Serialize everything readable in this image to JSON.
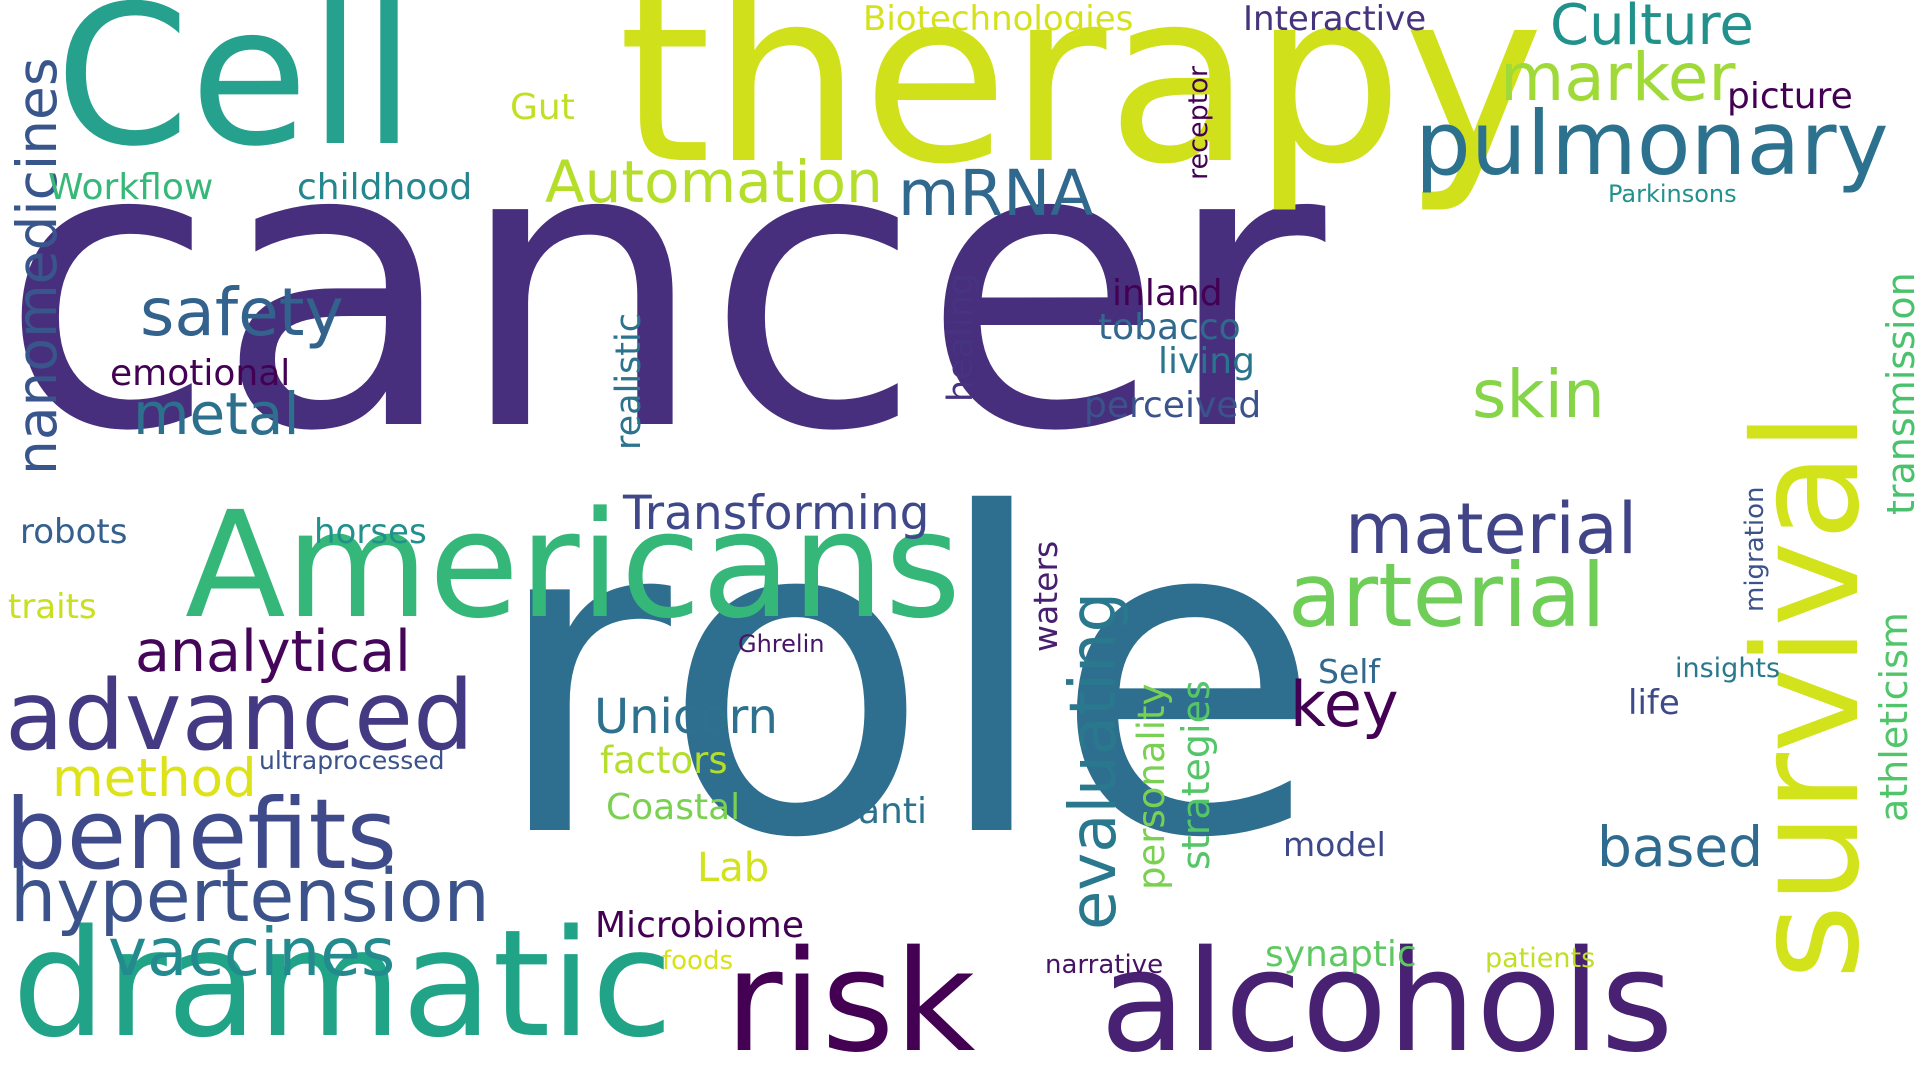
{
  "words": [
    {
      "text": "cancer",
      "color": "#472f7d"
    },
    {
      "text": "role",
      "color": "#2e6e8e"
    },
    {
      "text": "therapy",
      "color": "#d0e11c"
    },
    {
      "text": "Cell",
      "color": "#25a18e"
    },
    {
      "text": "survival",
      "color": "#d2e21b"
    },
    {
      "text": "Americans",
      "color": "#35b779"
    },
    {
      "text": "dramatic",
      "color": "#20a386"
    },
    {
      "text": "risk",
      "color": "#440154"
    },
    {
      "text": "alcohols",
      "color": "#482173"
    },
    {
      "text": "pulmonary",
      "color": "#2c728e"
    },
    {
      "text": "advanced",
      "color": "#443983"
    },
    {
      "text": "benefits",
      "color": "#3e4a89"
    },
    {
      "text": "arterial",
      "color": "#6ece58"
    },
    {
      "text": "hypertension",
      "color": "#3b528b"
    },
    {
      "text": "material",
      "color": "#414487"
    },
    {
      "text": "vaccines",
      "color": "#238a8d"
    },
    {
      "text": "evaluating",
      "color": "#2a788e"
    },
    {
      "text": "marker",
      "color": "#a0da39"
    },
    {
      "text": "Culture",
      "color": "#21918c"
    },
    {
      "text": "skin",
      "color": "#86d549"
    },
    {
      "text": "mRNA",
      "color": "#31688e"
    },
    {
      "text": "safety",
      "color": "#33638d"
    },
    {
      "text": "Automation",
      "color": "#b5de2b"
    },
    {
      "text": "nanomedicines",
      "color": "#39568c"
    },
    {
      "text": "analytical",
      "color": "#450559"
    },
    {
      "text": "key",
      "color": "#440154"
    },
    {
      "text": "method",
      "color": "#dde318"
    },
    {
      "text": "metal",
      "color": "#2d708e"
    },
    {
      "text": "Unicorn",
      "color": "#2d718e"
    },
    {
      "text": "Transforming",
      "color": "#3f4889"
    },
    {
      "text": "based",
      "color": "#2f6b8e"
    },
    {
      "text": "transmission",
      "color": "#4ac16d"
    },
    {
      "text": "athleticism",
      "color": "#51c56a"
    },
    {
      "text": "personality",
      "color": "#7ad151"
    },
    {
      "text": "strategies",
      "color": "#54c568"
    },
    {
      "text": "Workflow",
      "color": "#37b878"
    },
    {
      "text": "childhood",
      "color": "#24868e"
    },
    {
      "text": "Biotechnologies",
      "color": "#d5e21a"
    },
    {
      "text": "Interactive",
      "color": "#46337e"
    },
    {
      "text": "picture",
      "color": "#440154"
    },
    {
      "text": "Gut",
      "color": "#c2df23"
    },
    {
      "text": "realistic",
      "color": "#2c738e"
    },
    {
      "text": "healing",
      "color": "#463480"
    },
    {
      "text": "inland",
      "color": "#440154"
    },
    {
      "text": "tobacco",
      "color": "#31688e"
    },
    {
      "text": "living",
      "color": "#2b748e"
    },
    {
      "text": "perceived",
      "color": "#3b528b"
    },
    {
      "text": "emotional",
      "color": "#440154"
    },
    {
      "text": "robots",
      "color": "#355f8d"
    },
    {
      "text": "horses",
      "color": "#21918c"
    },
    {
      "text": "traits",
      "color": "#c8e020"
    },
    {
      "text": "waters",
      "color": "#481f70"
    },
    {
      "text": "Ghrelin",
      "color": "#481467"
    },
    {
      "text": "factors",
      "color": "#b5de2b"
    },
    {
      "text": "Coastal",
      "color": "#7ad151"
    },
    {
      "text": "anti",
      "color": "#2c728e"
    },
    {
      "text": "Lab",
      "color": "#d2e21b"
    },
    {
      "text": "ultraprocessed",
      "color": "#3b528b"
    },
    {
      "text": "Microbiome",
      "color": "#440154"
    },
    {
      "text": "foods",
      "color": "#d8e219"
    },
    {
      "text": "narrative",
      "color": "#471365"
    },
    {
      "text": "synaptic",
      "color": "#5ec962"
    },
    {
      "text": "patients",
      "color": "#c0df25"
    },
    {
      "text": "model",
      "color": "#3e4989"
    },
    {
      "text": "Self",
      "color": "#31688e"
    },
    {
      "text": "life",
      "color": "#3e4989"
    },
    {
      "text": "insights",
      "color": "#2a788e"
    },
    {
      "text": "migration",
      "color": "#3b528b"
    },
    {
      "text": "Parkinsons",
      "color": "#21918c"
    },
    {
      "text": "receptor",
      "color": "#440154"
    }
  ]
}
